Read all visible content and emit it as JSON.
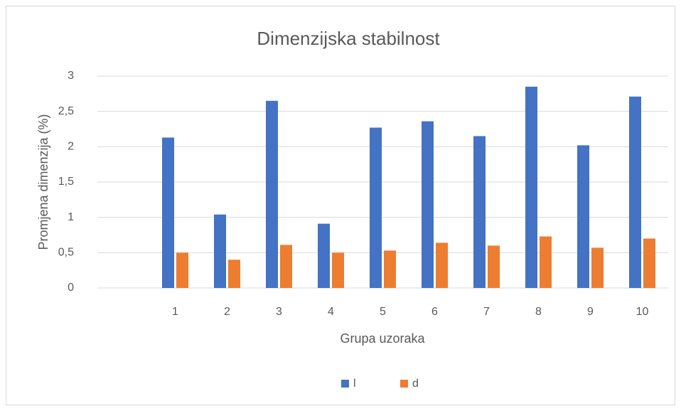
{
  "chart_data": {
    "type": "bar",
    "title": "Dimenzijska stabilnost",
    "x_label": "Grupa uzoraka",
    "y_label": "Promjena dimenzija (%)",
    "categories": [
      null,
      "1",
      "2",
      "3",
      "4",
      "5",
      "6",
      "7",
      "8",
      "9",
      "10"
    ],
    "series": [
      {
        "name": "l",
        "color": "#4472c4",
        "values": [
          null,
          2.13,
          1.04,
          2.65,
          0.91,
          2.27,
          2.36,
          2.15,
          2.85,
          2.02,
          2.71
        ]
      },
      {
        "name": "d",
        "color": "#ed7d31",
        "values": [
          null,
          0.5,
          0.4,
          0.61,
          0.5,
          0.53,
          0.64,
          0.6,
          0.73,
          0.57,
          0.7
        ]
      }
    ],
    "ylim": [
      0,
      3
    ],
    "yticks": [
      0,
      {
        "value": 0.5,
        "label": "0,5"
      },
      1,
      {
        "value": 1.5,
        "label": "1,5"
      },
      2,
      {
        "value": 2.5,
        "label": "2,5"
      },
      3
    ],
    "grid": true,
    "legend": "bottom"
  }
}
